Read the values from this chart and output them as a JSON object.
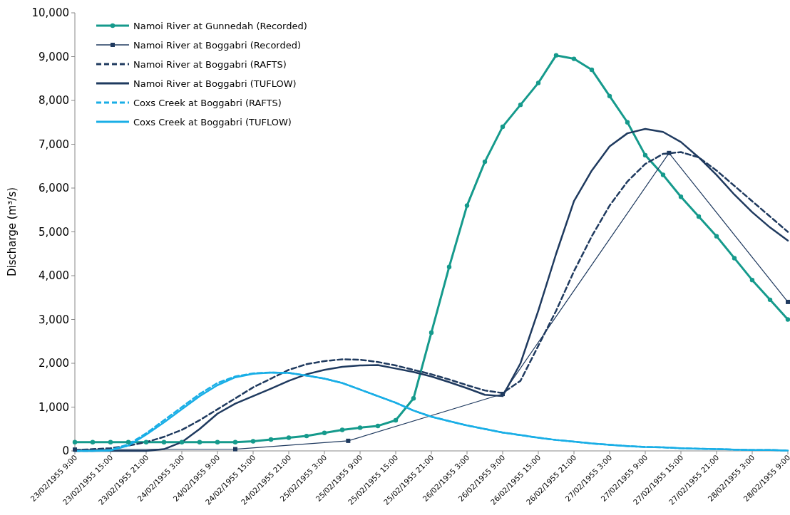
{
  "chart_data": {
    "type": "line",
    "ylabel": "Discharge (m³/s)",
    "legend": "top left",
    "grid": false,
    "x": [
      "1955-02-23T09:00",
      "1955-02-23T12:00",
      "1955-02-23T15:00",
      "1955-02-23T18:00",
      "1955-02-23T21:00",
      "1955-02-24T00:00",
      "1955-02-24T03:00",
      "1955-02-24T06:00",
      "1955-02-24T09:00",
      "1955-02-24T12:00",
      "1955-02-24T15:00",
      "1955-02-24T18:00",
      "1955-02-24T21:00",
      "1955-02-25T00:00",
      "1955-02-25T03:00",
      "1955-02-25T06:00",
      "1955-02-25T09:00",
      "1955-02-25T12:00",
      "1955-02-25T15:00",
      "1955-02-25T18:00",
      "1955-02-25T21:00",
      "1955-02-26T00:00",
      "1955-02-26T03:00",
      "1955-02-26T06:00",
      "1955-02-26T09:00",
      "1955-02-26T12:00",
      "1955-02-26T15:00",
      "1955-02-26T18:00",
      "1955-02-26T21:00",
      "1955-02-27T00:00",
      "1955-02-27T03:00",
      "1955-02-27T06:00",
      "1955-02-27T09:00",
      "1955-02-27T12:00",
      "1955-02-27T15:00",
      "1955-02-27T18:00",
      "1955-02-27T21:00",
      "1955-02-28T00:00",
      "1955-02-28T03:00",
      "1955-02-28T06:00",
      "1955-02-28T09:00"
    ],
    "xlim": [
      "1955-02-23T09:00",
      "1955-02-28T09:00"
    ],
    "xticks": [
      {
        "value": "1955-02-23T09:00",
        "label": "23/02/1955 9:00"
      },
      {
        "value": "1955-02-23T15:00",
        "label": "23/02/1955 15:00"
      },
      {
        "value": "1955-02-23T21:00",
        "label": "23/02/1955 21:00"
      },
      {
        "value": "1955-02-24T03:00",
        "label": "24/02/1955 3:00"
      },
      {
        "value": "1955-02-24T09:00",
        "label": "24/02/1955 9:00"
      },
      {
        "value": "1955-02-24T15:00",
        "label": "24/02/1955 15:00"
      },
      {
        "value": "1955-02-24T21:00",
        "label": "24/02/1955 21:00"
      },
      {
        "value": "1955-02-25T03:00",
        "label": "25/02/1955 3:00"
      },
      {
        "value": "1955-02-25T09:00",
        "label": "25/02/1955 9:00"
      },
      {
        "value": "1955-02-25T15:00",
        "label": "25/02/1955 15:00"
      },
      {
        "value": "1955-02-25T21:00",
        "label": "25/02/1955 21:00"
      },
      {
        "value": "1955-02-26T03:00",
        "label": "26/02/1955 3:00"
      },
      {
        "value": "1955-02-26T09:00",
        "label": "26/02/1955 9:00"
      },
      {
        "value": "1955-02-26T15:00",
        "label": "26/02/1955 15:00"
      },
      {
        "value": "1955-02-26T21:00",
        "label": "26/02/1955 21:00"
      },
      {
        "value": "1955-02-27T03:00",
        "label": "27/02/1955 3:00"
      },
      {
        "value": "1955-02-27T09:00",
        "label": "27/02/1955 9:00"
      },
      {
        "value": "1955-02-27T15:00",
        "label": "27/02/1955 15:00"
      },
      {
        "value": "1955-02-27T21:00",
        "label": "27/02/1955 21:00"
      },
      {
        "value": "1955-02-28T03:00",
        "label": "28/02/1955 3:00"
      },
      {
        "value": "1955-02-28T09:00",
        "label": "28/02/1955 9:00"
      }
    ],
    "ylim": [
      0,
      10000
    ],
    "yticks": [
      {
        "value": 0,
        "label": "0"
      },
      {
        "value": 1000,
        "label": "1,000"
      },
      {
        "value": 2000,
        "label": "2,000"
      },
      {
        "value": 3000,
        "label": "3,000"
      },
      {
        "value": 4000,
        "label": "4,000"
      },
      {
        "value": 5000,
        "label": "5,000"
      },
      {
        "value": 6000,
        "label": "6,000"
      },
      {
        "value": 7000,
        "label": "7,000"
      },
      {
        "value": 8000,
        "label": "8,000"
      },
      {
        "value": 9000,
        "label": "9,000"
      },
      {
        "value": 10000,
        "label": "10,000"
      }
    ],
    "series": [
      {
        "name": "Namoi River at Gunnedah (Recorded)",
        "color": "#159a8c",
        "marker": "circle",
        "line_style": "solid",
        "values": [
          200,
          200,
          200,
          200,
          200,
          200,
          200,
          200,
          200,
          200,
          220,
          260,
          300,
          340,
          410,
          480,
          530,
          570,
          700,
          1200,
          2700,
          4200,
          5600,
          6600,
          7400,
          7900,
          8400,
          9030,
          8950,
          8700,
          8100,
          7500,
          6750,
          6300,
          5800,
          5350,
          4900,
          4400,
          3900,
          3450,
          3000
        ]
      },
      {
        "name": "Namoi River at Boggabri (Recorded)",
        "color": "#1f3a5f",
        "marker": "square",
        "line_style": "solid",
        "x": [
          "1955-02-23T09:00",
          "1955-02-24T12:00",
          "1955-02-25T07:00",
          "1955-02-26T09:00",
          "1955-02-27T13:00",
          "1955-02-28T09:00"
        ],
        "values": [
          30,
          40,
          230,
          1300,
          6800,
          3400
        ]
      },
      {
        "name": "Namoi River at Boggabri (RAFTS)",
        "color": "#1f3a5f",
        "marker": "none",
        "line_style": "dashed",
        "values": [
          20,
          40,
          60,
          120,
          200,
          320,
          480,
          700,
          950,
          1200,
          1450,
          1650,
          1850,
          1980,
          2050,
          2090,
          2080,
          2030,
          1950,
          1850,
          1750,
          1630,
          1500,
          1380,
          1320,
          1600,
          2400,
          3200,
          4100,
          4900,
          5600,
          6150,
          6550,
          6780,
          6820,
          6700,
          6400,
          6050,
          5700,
          5350,
          5000
        ]
      },
      {
        "name": "Namoi River at Boggabri (TUFLOW)",
        "color": "#1f3a5f",
        "marker": "none",
        "line_style": "solid",
        "values": [
          0,
          0,
          0,
          0,
          0,
          40,
          200,
          500,
          850,
          1080,
          1250,
          1420,
          1600,
          1750,
          1850,
          1920,
          1950,
          1960,
          1880,
          1800,
          1700,
          1570,
          1430,
          1280,
          1250,
          2000,
          3200,
          4500,
          5700,
          6400,
          6950,
          7250,
          7350,
          7280,
          7050,
          6700,
          6300,
          5850,
          5450,
          5100,
          4800
        ]
      },
      {
        "name": "Coxs Creek at Boggabri (RAFTS)",
        "color": "#19aee6",
        "marker": "none",
        "line_style": "dashed",
        "values": [
          0,
          0,
          20,
          150,
          400,
          700,
          1000,
          1300,
          1550,
          1700,
          1770,
          1790,
          1780,
          1720,
          1650,
          1550,
          1400,
          1250,
          1100,
          920,
          780,
          680,
          580,
          500,
          420,
          360,
          300,
          250,
          210,
          170,
          140,
          110,
          90,
          80,
          60,
          50,
          40,
          30,
          20,
          20,
          10
        ]
      },
      {
        "name": "Coxs Creek at Boggabri (TUFLOW)",
        "color": "#19aee6",
        "marker": "none",
        "line_style": "solid",
        "values": [
          0,
          0,
          10,
          120,
          370,
          650,
          950,
          1250,
          1500,
          1680,
          1760,
          1790,
          1780,
          1720,
          1650,
          1550,
          1400,
          1250,
          1100,
          920,
          780,
          680,
          580,
          500,
          420,
          360,
          300,
          250,
          210,
          170,
          140,
          110,
          90,
          80,
          60,
          50,
          40,
          30,
          20,
          20,
          10
        ]
      }
    ]
  }
}
